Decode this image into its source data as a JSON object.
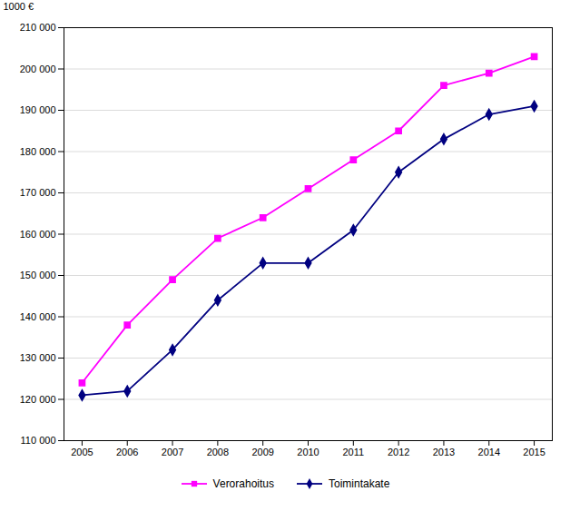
{
  "chart_data": {
    "type": "line",
    "ylabel": "1000 €",
    "x": [
      2005,
      2006,
      2007,
      2008,
      2009,
      2010,
      2011,
      2012,
      2013,
      2014,
      2015
    ],
    "xlim": [
      2004.6,
      2015.4
    ],
    "xticks": [
      2005,
      2006,
      2007,
      2008,
      2009,
      2010,
      2011,
      2012,
      2013,
      2014,
      2015
    ],
    "ylim": [
      110000,
      210000
    ],
    "yticks": [
      {
        "value": 110000,
        "label": "110 000"
      },
      {
        "value": 120000,
        "label": "120 000"
      },
      {
        "value": 130000,
        "label": "130 000"
      },
      {
        "value": 140000,
        "label": "140 000"
      },
      {
        "value": 150000,
        "label": "150 000"
      },
      {
        "value": 160000,
        "label": "160 000"
      },
      {
        "value": 170000,
        "label": "170 000"
      },
      {
        "value": 180000,
        "label": "180 000"
      },
      {
        "value": 190000,
        "label": "190 000"
      },
      {
        "value": 200000,
        "label": "200 000"
      },
      {
        "value": 210000,
        "label": "210 000"
      }
    ],
    "grid": true,
    "legend": "bottom",
    "series": [
      {
        "name": "Verorahoitus",
        "color": "#FF00FF",
        "marker": "square",
        "values": [
          124000,
          138000,
          149000,
          159000,
          164000,
          171000,
          178000,
          185000,
          196000,
          199000,
          203000
        ]
      },
      {
        "name": "Toimintakate",
        "color": "#000080",
        "marker": "diamond",
        "values": [
          121000,
          122000,
          132000,
          144000,
          153000,
          153000,
          161000,
          175000,
          183000,
          189000,
          191000
        ]
      }
    ]
  }
}
